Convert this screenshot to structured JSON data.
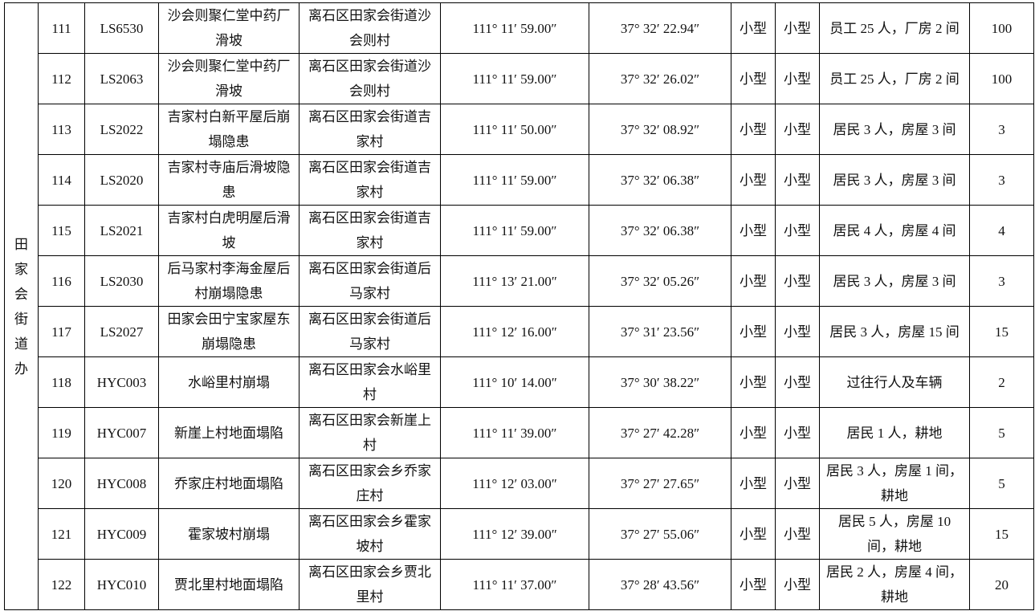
{
  "district": "田家会街道办",
  "rows": [
    {
      "no": "111",
      "code": "LS6530",
      "name": "沙会则聚仁堂中药厂滑坡",
      "location": "离石区田家会街道沙会则村",
      "lon": "111° 11′ 59.00″",
      "lat": "37° 32′ 22.94″",
      "scale": "小型",
      "level": "小型",
      "threat": "员工 25 人，厂房 2 间",
      "count": "100"
    },
    {
      "no": "112",
      "code": "LS2063",
      "name": "沙会则聚仁堂中药厂滑坡",
      "location": "离石区田家会街道沙会则村",
      "lon": "111° 11′ 59.00″",
      "lat": "37° 32′ 26.02″",
      "scale": "小型",
      "level": "小型",
      "threat": "员工 25 人，厂房 2 间",
      "count": "100"
    },
    {
      "no": "113",
      "code": "LS2022",
      "name": "吉家村白新平屋后崩塌隐患",
      "location": "离石区田家会街道吉家村",
      "lon": "111° 11′ 50.00″",
      "lat": "37° 32′ 08.92″",
      "scale": "小型",
      "level": "小型",
      "threat": "居民 3 人，房屋 3 间",
      "count": "3"
    },
    {
      "no": "114",
      "code": "LS2020",
      "name": "吉家村寺庙后滑坡隐患",
      "location": "离石区田家会街道吉家村",
      "lon": "111° 11′ 59.00″",
      "lat": "37° 32′ 06.38″",
      "scale": "小型",
      "level": "小型",
      "threat": "居民 3 人，房屋 3 间",
      "count": "3"
    },
    {
      "no": "115",
      "code": "LS2021",
      "name": "吉家村白虎明屋后滑坡",
      "location": "离石区田家会街道吉家村",
      "lon": "111° 11′ 59.00″",
      "lat": "37° 32′ 06.38″",
      "scale": "小型",
      "level": "小型",
      "threat": "居民 4 人，房屋 4 间",
      "count": "4"
    },
    {
      "no": "116",
      "code": "LS2030",
      "name": "后马家村李海金屋后村崩塌隐患",
      "location": "离石区田家会街道后马家村",
      "lon": "111° 13′ 21.00″",
      "lat": "37° 32′ 05.26″",
      "scale": "小型",
      "level": "小型",
      "threat": "居民 3 人，房屋 3 间",
      "count": "3"
    },
    {
      "no": "117",
      "code": "LS2027",
      "name": "田家会田宁宝家屋东崩塌隐患",
      "location": "离石区田家会街道后马家村",
      "lon": "111° 12′ 16.00″",
      "lat": "37° 31′ 23.56″",
      "scale": "小型",
      "level": "小型",
      "threat": "居民 3 人，房屋 15 间",
      "count": "15"
    },
    {
      "no": "118",
      "code": "HYC003",
      "name": "水峪里村崩塌",
      "location": "离石区田家会水峪里村",
      "lon": "111° 10′ 14.00″",
      "lat": "37° 30′ 38.22″",
      "scale": "小型",
      "level": "小型",
      "threat": "过往行人及车辆",
      "count": "2"
    },
    {
      "no": "119",
      "code": "HYC007",
      "name": "新崖上村地面塌陷",
      "location": "离石区田家会新崖上村",
      "lon": "111° 11′ 39.00″",
      "lat": "37° 27′ 42.28″",
      "scale": "小型",
      "level": "小型",
      "threat": "居民 1 人，耕地",
      "count": "5"
    },
    {
      "no": "120",
      "code": "HYC008",
      "name": "乔家庄村地面塌陷",
      "location": "离石区田家会乡乔家庄村",
      "lon": "111° 12′ 03.00″",
      "lat": "37° 27′ 27.65″",
      "scale": "小型",
      "level": "小型",
      "threat": "居民 3 人，房屋 1 间，耕地",
      "count": "5"
    },
    {
      "no": "121",
      "code": "HYC009",
      "name": "霍家坡村崩塌",
      "location": "离石区田家会乡霍家坡村",
      "lon": "111° 12′ 39.00″",
      "lat": "37° 27′ 55.06″",
      "scale": "小型",
      "level": "小型",
      "threat": "居民 5 人，房屋 10 间，耕地",
      "count": "15"
    },
    {
      "no": "122",
      "code": "HYC010",
      "name": "贾北里村地面塌陷",
      "location": "离石区田家会乡贾北里村",
      "lon": "111° 11′ 37.00″",
      "lat": "37° 28′ 43.56″",
      "scale": "小型",
      "level": "小型",
      "threat": "居民 2 人，房屋 4 间，耕地",
      "count": "20"
    }
  ]
}
